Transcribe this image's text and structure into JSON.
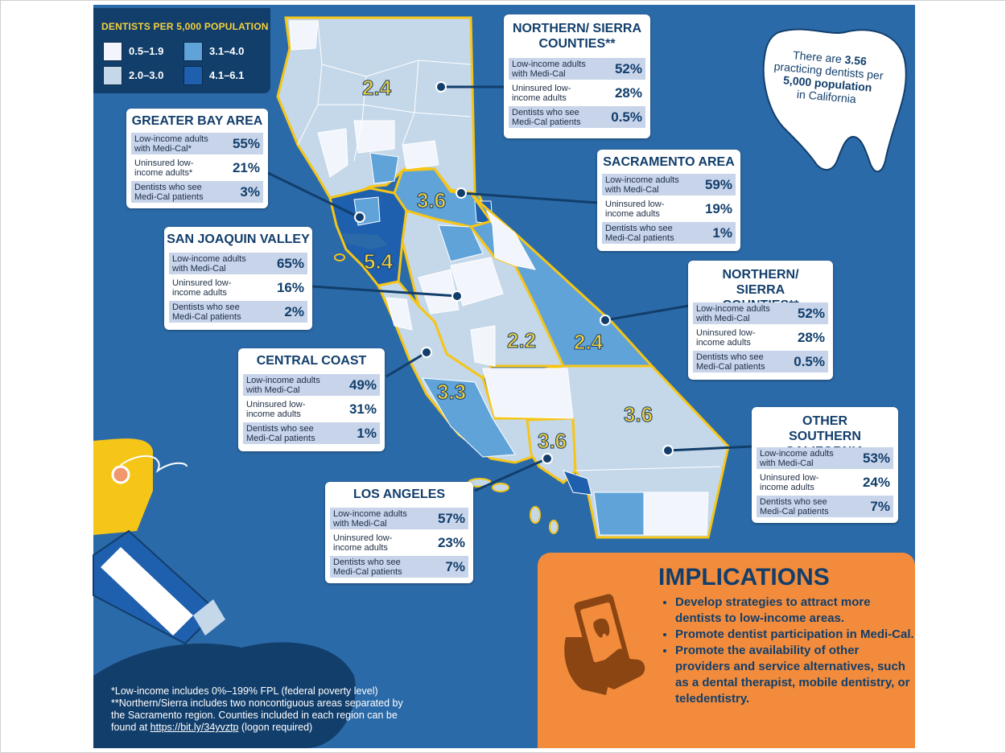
{
  "legend": {
    "title": "DENTISTS PER 5,000 POPULATION",
    "items": [
      {
        "label": "0.5–1.9",
        "color": "#f2f5fb"
      },
      {
        "label": "3.1–4.0",
        "color": "#5fa3d9"
      },
      {
        "label": "2.0–3.0",
        "color": "#c5d8ea"
      },
      {
        "label": "4.1–6.1",
        "color": "#1e5fae"
      }
    ]
  },
  "tooth": {
    "line1": "There are",
    "value": "3.56",
    "line2": "practicing dentists per",
    "pop": "5,000 population",
    "line3": "in California"
  },
  "map_labels": {
    "north": "2.4",
    "sacramento": "3.6",
    "bay": "5.4",
    "sjv": "2.2",
    "sierra_south": "2.4",
    "central_coast": "3.3",
    "la": "3.6",
    "socal": "3.6"
  },
  "cards": {
    "northern1": {
      "title": "NORTHERN/ SIERRA COUNTIES**",
      "rows": [
        {
          "label": "Low-income adults with Medi-Cal",
          "value": "52%"
        },
        {
          "label": "Uninsured low-income adults",
          "value": "28%"
        },
        {
          "label": "Dentists who see Medi-Cal patients",
          "value": "0.5%"
        }
      ]
    },
    "bay": {
      "title": "GREATER BAY AREA",
      "rows": [
        {
          "label": "Low-income adults with Medi-Cal*",
          "value": "55%"
        },
        {
          "label": "Uninsured low-income adults*",
          "value": "21%"
        },
        {
          "label": "Dentists who see Medi-Cal patients",
          "value": "3%"
        }
      ]
    },
    "sacramento": {
      "title": "SACRAMENTO AREA",
      "rows": [
        {
          "label": "Low-income adults with Medi-Cal",
          "value": "59%"
        },
        {
          "label": "Uninsured low-income adults",
          "value": "19%"
        },
        {
          "label": "Dentists who see Medi-Cal patients",
          "value": "1%"
        }
      ]
    },
    "sjv": {
      "title": "SAN JOAQUIN VALLEY",
      "rows": [
        {
          "label": "Low-income adults with Medi-Cal",
          "value": "65%"
        },
        {
          "label": "Uninsured low-income adults",
          "value": "16%"
        },
        {
          "label": "Dentists who see Medi-Cal patients",
          "value": "2%"
        }
      ]
    },
    "northern2": {
      "title": "NORTHERN/ SIERRA COUNTIES**",
      "rows": [
        {
          "label": "Low-income adults with Medi-Cal",
          "value": "52%"
        },
        {
          "label": "Uninsured low-income adults",
          "value": "28%"
        },
        {
          "label": "Dentists who see Medi-Cal patients",
          "value": "0.5%"
        }
      ]
    },
    "central": {
      "title": "CENTRAL COAST",
      "rows": [
        {
          "label": "Low-income adults with Medi-Cal",
          "value": "49%"
        },
        {
          "label": "Uninsured low-income adults",
          "value": "31%"
        },
        {
          "label": "Dentists who see Medi-Cal patients",
          "value": "1%"
        }
      ]
    },
    "socal": {
      "title": "OTHER SOUTHERN CALIFORNIA",
      "rows": [
        {
          "label": "Low-income adults with Medi-Cal",
          "value": "53%"
        },
        {
          "label": "Uninsured low-income adults",
          "value": "24%"
        },
        {
          "label": "Dentists who see Medi-Cal patients",
          "value": "7%"
        }
      ]
    },
    "la": {
      "title": "LOS ANGELES",
      "rows": [
        {
          "label": "Low-income adults with Medi-Cal",
          "value": "57%"
        },
        {
          "label": "Uninsured low-income adults",
          "value": "23%"
        },
        {
          "label": "Dentists who see Medi-Cal patients",
          "value": "7%"
        }
      ]
    }
  },
  "implications": {
    "title": "IMPLICATIONS",
    "items": [
      "Develop strategies to attract more dentists to low-income areas.",
      "Promote dentist participation in Medi-Cal.",
      "Promote the availability of other providers and service alternatives, such as a dental therapist, mobile dentistry, or teledentistry."
    ]
  },
  "footnote": {
    "line1": "*Low-income includes 0%–199% FPL (federal poverty level)",
    "line2": "**Northern/Sierra includes two noncontiguous areas separated by the Sacramento region. Counties included in each region can be found at",
    "link": "https://bit.ly/34yvztp",
    "line3": "(logon required)"
  }
}
